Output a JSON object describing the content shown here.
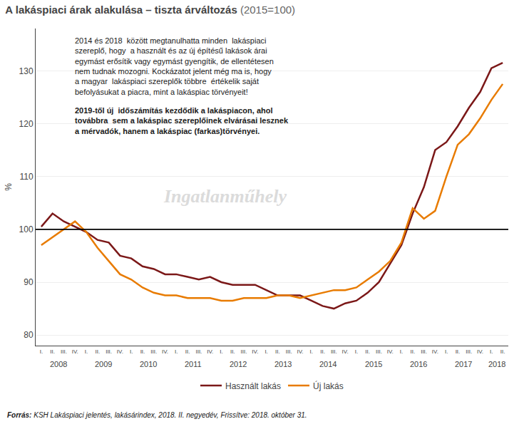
{
  "chart_data": {
    "type": "line",
    "title": "A lakáspiaci árak alakulása – tiszta árváltozás",
    "subtitle": " (2015=100)",
    "y_label": "%",
    "categories": [
      "I.",
      "II.",
      "III.",
      "IV.",
      "I.",
      "II.",
      "III.",
      "IV.",
      "I.",
      "II.",
      "III.",
      "IV.",
      "I.",
      "II.",
      "III.",
      "IV.",
      "I.",
      "II.",
      "III.",
      "IV.",
      "I.",
      "II.",
      "III.",
      "IV.",
      "I.",
      "II.",
      "III.",
      "IV.",
      "I.",
      "II.",
      "III.",
      "IV.",
      "I.",
      "II.",
      "III.",
      "IV.",
      "I.",
      "II.",
      "III.",
      "IV.",
      "I.",
      "II."
    ],
    "category_groups": [
      {
        "label": "2008",
        "first": 0,
        "last": 3
      },
      {
        "label": "2009",
        "first": 4,
        "last": 7
      },
      {
        "label": "2010",
        "first": 8,
        "last": 11
      },
      {
        "label": "2011",
        "first": 12,
        "last": 15
      },
      {
        "label": "2012",
        "first": 16,
        "last": 19
      },
      {
        "label": "2013",
        "first": 20,
        "last": 23
      },
      {
        "label": "2014",
        "first": 24,
        "last": 27
      },
      {
        "label": "2015",
        "first": 28,
        "last": 31
      },
      {
        "label": "2016",
        "first": 32,
        "last": 35
      },
      {
        "label": "2017",
        "first": 36,
        "last": 39
      },
      {
        "label": "2018",
        "first": 40,
        "last": 41
      }
    ],
    "series": [
      {
        "name": "Használt lakás",
        "color": "#7B1818",
        "values": [
          100.5,
          103.0,
          101.5,
          100.5,
          99.5,
          98.0,
          97.5,
          95.0,
          94.5,
          93.0,
          92.5,
          91.5,
          91.5,
          91.0,
          90.5,
          91.0,
          90.0,
          89.5,
          89.5,
          89.5,
          88.5,
          87.5,
          87.5,
          87.5,
          86.5,
          85.5,
          85.0,
          86.0,
          86.5,
          88.0,
          90.0,
          93.5,
          97.0,
          103.0,
          108.0,
          115.0,
          116.5,
          119.5,
          123.0,
          126.0,
          130.5,
          131.5
        ]
      },
      {
        "name": "Új lakás",
        "color": "#E87B00",
        "values": [
          97.0,
          98.5,
          100.0,
          101.5,
          99.5,
          96.5,
          94.0,
          91.5,
          90.5,
          89.0,
          88.0,
          87.5,
          87.5,
          87.0,
          87.0,
          87.0,
          86.5,
          86.5,
          87.0,
          87.0,
          87.0,
          87.5,
          87.5,
          87.0,
          87.5,
          88.0,
          88.5,
          88.5,
          89.0,
          90.5,
          92.0,
          94.0,
          97.5,
          104.0,
          102.0,
          103.5,
          110.0,
          116.0,
          118.0,
          121.0,
          124.5,
          127.5
        ]
      }
    ],
    "reference_line": 100,
    "ylim": [
      78,
      138
    ],
    "yticks": [
      80,
      90,
      100,
      110,
      120,
      130
    ],
    "grid": true,
    "legend": "bottom",
    "annotations": [
      {
        "lines": [
          "2014 és 2018  között megtanulhatta minden  lakáspiaci",
          "szereplő, hogy  a használt és az új építésű lakások árai",
          "egymást erősítik vagy egymást gyengítik, de ellentétesen",
          "nem tudnak mozogni. Kockázatot jelent még ma is, hogy",
          "a magyar  lakáspiaci szereplők többre  értékelik saját",
          "befolyásukat a piacra, mint a lakáspiac törvényeit!"
        ]
      },
      {
        "lines": [
          "2019-től új  időszámítás kezdődik a lakáspiacon, ahol",
          "továbbra  sem a lakáspiac szereplőinek elvárásai lesznek",
          "a mérvadók, hanem a lakáspiac (farkas)törvényei."
        ]
      }
    ],
    "watermark": "Ingatlanműhely",
    "source_label": "Forrás:",
    "source": " KSH Lakáspiaci jelentés, lakásárindex, 2018. II. negyedév, Frissítve: 2018. október 31."
  }
}
